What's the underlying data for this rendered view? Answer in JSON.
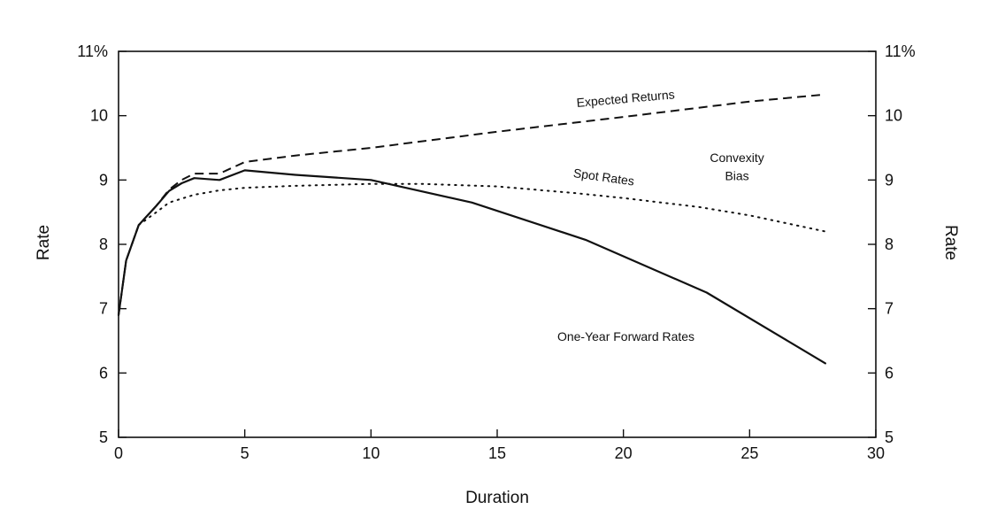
{
  "chart_data": {
    "type": "line",
    "title": "",
    "xlabel": "Duration",
    "ylabel_left": "Rate",
    "ylabel_right": "Rate",
    "xlim": [
      0,
      30
    ],
    "ylim": [
      5,
      11
    ],
    "x_ticks": [
      0,
      5,
      10,
      15,
      20,
      25,
      30
    ],
    "x_tick_labels": [
      "0",
      "5",
      "10",
      "15",
      "20",
      "25",
      "30"
    ],
    "y_ticks": [
      5,
      6,
      7,
      8,
      9,
      10,
      11
    ],
    "y_tick_labels": [
      "5",
      "6",
      "7",
      "8",
      "9",
      "10",
      "11%"
    ],
    "grid": false,
    "legend": "none",
    "series": [
      {
        "name": "Expected Returns",
        "style": "dashed",
        "x": [
          0,
          0.3,
          0.8,
          1.5,
          2,
          2.5,
          3,
          4,
          5,
          7,
          10,
          15,
          20,
          25,
          28
        ],
        "y": [
          6.9,
          7.75,
          8.3,
          8.6,
          8.85,
          9.0,
          9.1,
          9.1,
          9.28,
          9.38,
          9.5,
          9.75,
          9.98,
          10.22,
          10.33
        ]
      },
      {
        "name": "Spot Rates",
        "style": "dotted",
        "x": [
          0,
          0.3,
          0.8,
          1.5,
          2,
          3,
          4,
          5,
          7,
          10,
          12,
          15,
          18,
          20,
          23,
          25,
          28
        ],
        "y": [
          6.9,
          7.75,
          8.3,
          8.5,
          8.65,
          8.77,
          8.84,
          8.88,
          8.91,
          8.94,
          8.94,
          8.9,
          8.8,
          8.72,
          8.58,
          8.45,
          8.2
        ]
      },
      {
        "name": "One-Year Forward Rates",
        "style": "solid",
        "x": [
          0,
          0.3,
          0.8,
          1.5,
          2,
          2.5,
          3,
          4,
          5,
          7,
          10,
          14,
          18.5,
          23.3,
          28
        ],
        "y": [
          6.9,
          7.75,
          8.3,
          8.6,
          8.83,
          8.95,
          9.03,
          9.0,
          9.15,
          9.08,
          9.0,
          8.65,
          8.07,
          7.25,
          6.15
        ]
      }
    ],
    "annotations": [
      {
        "text": "Expected Returns",
        "x": 20.1,
        "y": 10.2,
        "rotate": -5
      },
      {
        "text": "Spot Rates",
        "x": 19.2,
        "y": 8.98,
        "rotate": 8
      },
      {
        "text": "Convexity",
        "x": 24.5,
        "y": 9.28,
        "rotate": 0
      },
      {
        "text": "Bias",
        "x": 24.5,
        "y": 9.0,
        "rotate": 0
      },
      {
        "text": "One-Year Forward Rates",
        "x": 20.1,
        "y": 6.5,
        "rotate": 0
      }
    ]
  }
}
